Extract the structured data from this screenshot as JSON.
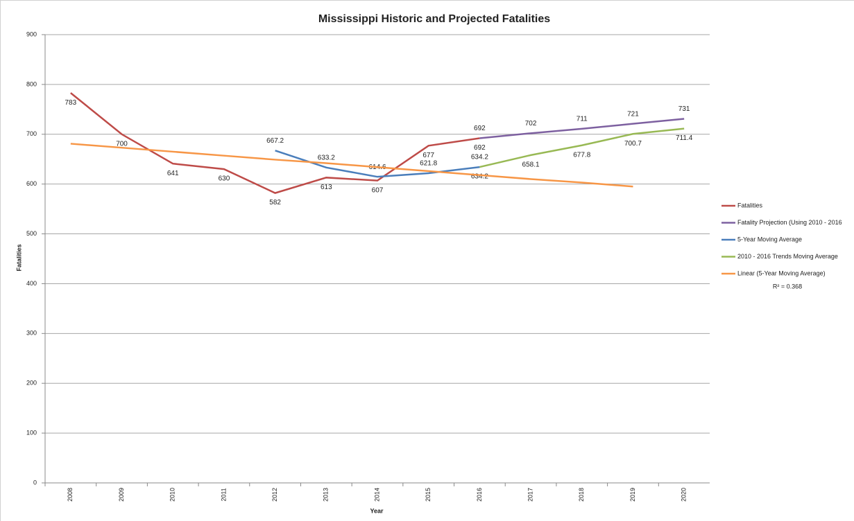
{
  "chart_data": {
    "type": "line",
    "title": "Mississippi Historic and Projected Fatalities",
    "x_label": "Year",
    "y_label": "Fatalities",
    "categories": [
      "2008",
      "2009",
      "2010",
      "2011",
      "2012",
      "2013",
      "2014",
      "2015",
      "2016",
      "2017",
      "2018",
      "2019",
      "2020"
    ],
    "ylim": [
      0,
      900
    ],
    "yticks": [
      0,
      100,
      200,
      300,
      400,
      500,
      600,
      700,
      800,
      900
    ],
    "grid": true,
    "legend": "right",
    "series": [
      {
        "name": "Fatalities",
        "color": "#be4b48",
        "data_labels": "below",
        "values": [
          783,
          700,
          641,
          630,
          582,
          613,
          607,
          677,
          692,
          null,
          null,
          null,
          null
        ]
      },
      {
        "name": "Fatality Projection (Using 2010 - 2016",
        "color": "#7d60a0",
        "data_labels": "above",
        "values": [
          null,
          null,
          null,
          null,
          null,
          null,
          null,
          null,
          692,
          702,
          711,
          721,
          731
        ]
      },
      {
        "name": "5-Year Moving Average",
        "color": "#4a7ebb",
        "data_labels": "above",
        "values": [
          null,
          null,
          null,
          null,
          667.2,
          633.2,
          614.6,
          621.8,
          634.2,
          null,
          null,
          null,
          null
        ]
      },
      {
        "name": "2010 - 2016 Trends Moving Average",
        "color": "#98b954",
        "data_labels": "below",
        "values": [
          null,
          null,
          null,
          null,
          null,
          null,
          null,
          null,
          634.2,
          658.1,
          677.8,
          700.7,
          711.4
        ]
      },
      {
        "name": "Linear (5-Year Moving Average)",
        "color": "#f79646",
        "data_labels": "none",
        "annotation": "R² = 0.368",
        "values": [
          681,
          673,
          665,
          657,
          649,
          642,
          634,
          626,
          618,
          610,
          603,
          595,
          null
        ]
      }
    ]
  }
}
